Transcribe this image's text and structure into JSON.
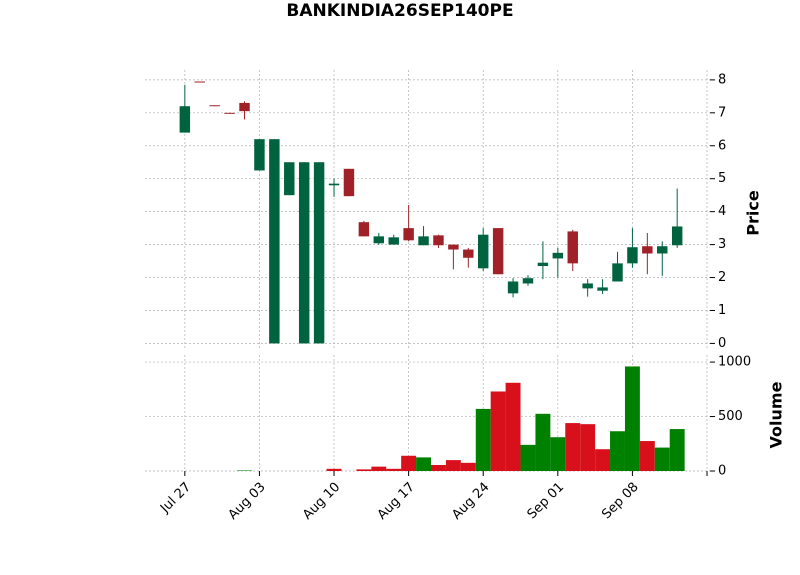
{
  "chart_data": {
    "type": "candlestick",
    "title": "BANKINDIA26SEP140PE",
    "ylabel": "Price",
    "y2label": "Volume",
    "up_color": "#006340",
    "down_color": "#a02128",
    "open": [
      6.4,
      7.95,
      7.23,
      7.0,
      7.3,
      5.25,
      0,
      4.5,
      0,
      0,
      4.8,
      5.3,
      3.68,
      3.04,
      3.0,
      3.5,
      2.98,
      3.28,
      3.0,
      2.85,
      2.28,
      3.5,
      1.52,
      1.82,
      2.35,
      2.58,
      3.4,
      1.67,
      1.6,
      1.88,
      2.43,
      2.95,
      2.73,
      2.98
    ],
    "high": [
      7.85,
      7.95,
      7.23,
      7.0,
      7.35,
      6.2,
      6.2,
      5.5,
      5.5,
      5.5,
      5.0,
      5.3,
      3.72,
      3.35,
      3.3,
      4.2,
      3.56,
      3.3,
      3.0,
      2.9,
      3.5,
      3.5,
      1.98,
      2.07,
      3.1,
      2.9,
      3.45,
      1.95,
      1.95,
      2.78,
      3.5,
      3.35,
      3.1,
      4.7
    ],
    "low": [
      6.4,
      7.93,
      7.21,
      6.98,
      6.8,
      5.25,
      0,
      4.5,
      0,
      0,
      4.45,
      4.47,
      3.25,
      3.0,
      3.0,
      3.1,
      2.98,
      2.9,
      2.25,
      2.3,
      2.2,
      2.1,
      1.4,
      1.75,
      1.95,
      2.0,
      2.2,
      1.42,
      1.5,
      1.88,
      2.3,
      2.1,
      2.05,
      2.9
    ],
    "close": [
      7.2,
      7.93,
      7.21,
      6.98,
      7.05,
      6.2,
      6.2,
      5.5,
      5.5,
      5.5,
      4.85,
      4.47,
      3.25,
      3.25,
      3.22,
      3.13,
      3.25,
      2.98,
      2.85,
      2.6,
      3.3,
      2.1,
      1.88,
      1.98,
      2.45,
      2.75,
      2.43,
      1.82,
      1.7,
      2.43,
      2.92,
      2.73,
      2.95,
      3.55
    ],
    "volume": [
      0,
      0,
      0,
      0,
      5,
      0,
      0,
      0,
      0,
      0,
      20,
      0,
      15,
      40,
      20,
      140,
      125,
      55,
      100,
      75,
      570,
      730,
      810,
      240,
      525,
      310,
      440,
      430,
      200,
      365,
      960,
      275,
      215,
      385
    ],
    "volume_colors": [
      "#008000",
      "#008000",
      "#008000",
      "#008000",
      "#008000",
      "#008000",
      "#008000",
      "#008000",
      "#008000",
      "#008000",
      "#d8101b",
      "#008000",
      "#d8101b",
      "#d8101b",
      "#d8101b",
      "#d8101b",
      "#008000",
      "#d8101b",
      "#d8101b",
      "#d8101b",
      "#008000",
      "#d8101b",
      "#d8101b",
      "#008000",
      "#008000",
      "#008000",
      "#d8101b",
      "#d8101b",
      "#d8101b",
      "#008000",
      "#008000",
      "#d8101b",
      "#008000",
      "#008000"
    ],
    "xlim": [
      -2.67,
      35.2
    ],
    "xticks": [
      {
        "value": 0,
        "label": "Jul 27"
      },
      {
        "value": 5,
        "label": "Aug 03"
      },
      {
        "value": 10,
        "label": "Aug 10"
      },
      {
        "value": 15,
        "label": "Aug 17"
      },
      {
        "value": 20,
        "label": "Aug 24"
      },
      {
        "value": 25,
        "label": "Sep 01"
      },
      {
        "value": 30,
        "label": "Sep 08"
      },
      {
        "value": 35,
        "label": null
      }
    ],
    "ylim": [
      -0.2,
      8.3
    ],
    "yticks": [
      0,
      1,
      2,
      3,
      4,
      5,
      6,
      7,
      8
    ],
    "y2lim": [
      0,
      1065
    ],
    "y2ticks": [
      0,
      500,
      1000
    ],
    "grid": true
  }
}
